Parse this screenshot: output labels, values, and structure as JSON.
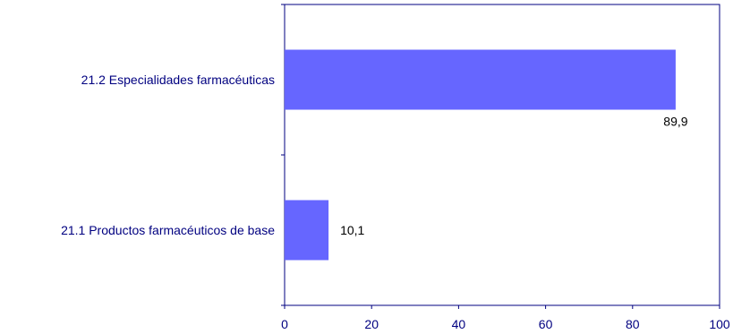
{
  "chart_data": {
    "type": "bar",
    "orientation": "horizontal",
    "categories": [
      "21.1 Productos farmacéuticos de base",
      "21.2 Especialidades farmacéuticas"
    ],
    "values": [
      10.1,
      89.9
    ],
    "value_labels": [
      "10,1",
      "89,9"
    ],
    "xlim": [
      0,
      100
    ],
    "xticks": [
      0,
      20,
      40,
      60,
      80,
      100
    ],
    "grid": false,
    "legend": "none",
    "colors": {
      "bar": "#6666ff",
      "axis": "#000080",
      "text": "#000080",
      "value_text": "#000000"
    }
  }
}
